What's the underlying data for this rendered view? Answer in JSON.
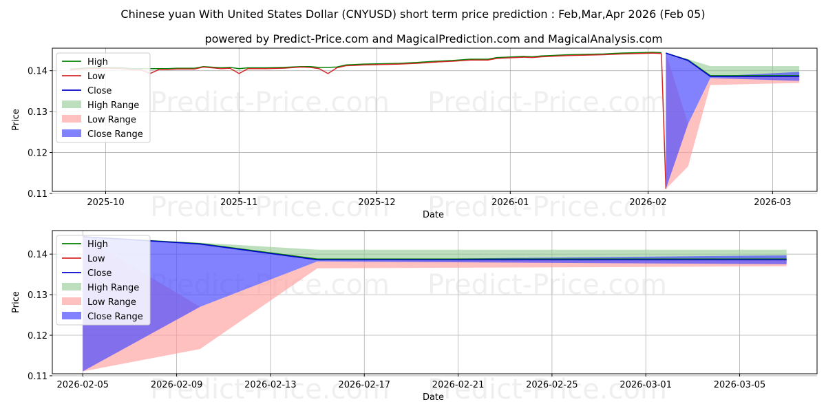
{
  "chart_data": {
    "title": "Chinese yuan With United States Dollar (CNYUSD) short term price prediction : Feb,Mar,Apr 2026 (Feb 05)",
    "subtitle": "powered by Predict-Price.com and MagicalPrediction.com and MagicalAnalysis.com",
    "watermark": "Predict-Price.com",
    "colors": {
      "high": "#008000",
      "low": "#d62728",
      "close": "#0000cc",
      "high_range": "#93c993",
      "low_range": "#ff9e9e",
      "close_range": "#4d4dff"
    },
    "legend": [
      "High",
      "Low",
      "Close",
      "High Range",
      "Low Range",
      "Close Range"
    ],
    "charts": [
      {
        "id": "top",
        "type": "line",
        "xlabel": "Date",
        "ylabel": "Price",
        "xlim_days": [
          -138,
          34
        ],
        "ylim": [
          0.1105,
          0.1455
        ],
        "xticks": [
          {
            "day": -126,
            "label": "2025-10"
          },
          {
            "day": -96,
            "label": "2025-11"
          },
          {
            "day": -65,
            "label": "2025-12"
          },
          {
            "day": -35,
            "label": "2026-01"
          },
          {
            "day": -4,
            "label": "2026-02"
          },
          {
            "day": 24,
            "label": "2026-03"
          }
        ],
        "yticks": [
          {
            "value": 0.11,
            "label": "0.11"
          },
          {
            "value": 0.12,
            "label": "0.12"
          },
          {
            "value": 0.13,
            "label": "0.13"
          },
          {
            "value": 0.14,
            "label": "0.14"
          }
        ],
        "history": {
          "days": [
            -134,
            -130,
            -126,
            -122,
            -120,
            -118,
            -116,
            -114,
            -112,
            -110,
            -106,
            -104,
            -100,
            -98,
            -96,
            -94,
            -92,
            -90,
            -86,
            -82,
            -80,
            -78,
            -76,
            -74,
            -72,
            -70,
            -68,
            -64,
            -60,
            -56,
            -52,
            -48,
            -44,
            -40,
            -38,
            -36,
            -32,
            -30,
            -28,
            -26,
            -22,
            -18,
            -14,
            -10,
            -6,
            -3,
            -1
          ],
          "low": [
            0.1402,
            0.1405,
            0.1406,
            0.1405,
            0.1402,
            0.1402,
            0.1393,
            0.1403,
            0.1403,
            0.1404,
            0.1404,
            0.1409,
            0.1405,
            0.1406,
            0.1393,
            0.1405,
            0.1405,
            0.1405,
            0.1406,
            0.1409,
            0.1408,
            0.1405,
            0.1393,
            0.1407,
            0.1412,
            0.1413,
            0.1414,
            0.1415,
            0.1416,
            0.1418,
            0.1421,
            0.1423,
            0.1426,
            0.1426,
            0.143,
            0.1431,
            0.1433,
            0.1432,
            0.1434,
            0.1435,
            0.1437,
            0.1438,
            0.1439,
            0.1441,
            0.1442,
            0.1443,
            0.1442
          ],
          "high": [
            0.1404,
            0.1407,
            0.1408,
            0.1407,
            0.1405,
            0.1405,
            0.1405,
            0.1405,
            0.1405,
            0.1406,
            0.1406,
            0.141,
            0.1407,
            0.1408,
            0.1405,
            0.1407,
            0.1407,
            0.1407,
            0.1408,
            0.141,
            0.141,
            0.1408,
            0.1408,
            0.1409,
            0.1414,
            0.1415,
            0.1416,
            0.1417,
            0.1418,
            0.142,
            0.1423,
            0.1425,
            0.1428,
            0.1428,
            0.1432,
            0.1433,
            0.1435,
            0.1434,
            0.1436,
            0.1437,
            0.1439,
            0.144,
            0.1441,
            0.1443,
            0.1444,
            0.1445,
            0.1444
          ]
        },
        "low_drop": {
          "days": [
            -1,
            0
          ],
          "values": [
            0.1442,
            0.1111
          ]
        }
      },
      {
        "id": "bottom",
        "type": "line",
        "xlabel": "Date",
        "ylabel": "Price",
        "xlim_days": [
          -1.3,
          31.3
        ],
        "ylim": [
          0.1105,
          0.1458
        ],
        "xticks": [
          {
            "day": 0,
            "label": "2026-02-05"
          },
          {
            "day": 4,
            "label": "2026-02-09"
          },
          {
            "day": 8,
            "label": "2026-02-13"
          },
          {
            "day": 12,
            "label": "2026-02-17"
          },
          {
            "day": 16,
            "label": "2026-02-21"
          },
          {
            "day": 20,
            "label": "2026-02-25"
          },
          {
            "day": 24,
            "label": "2026-03-01"
          },
          {
            "day": 28,
            "label": "2026-03-05"
          }
        ],
        "yticks": [
          {
            "value": 0.11,
            "label": "0.11"
          },
          {
            "value": 0.12,
            "label": "0.12"
          },
          {
            "value": 0.13,
            "label": "0.13"
          },
          {
            "value": 0.14,
            "label": "0.14"
          }
        ]
      }
    ],
    "forecast": {
      "days": [
        0,
        5,
        10,
        30
      ],
      "high": [
        0.1443,
        0.1426,
        0.1388,
        0.1388
      ],
      "low": [
        0.1111,
        0.1166,
        0.1365,
        0.137
      ],
      "close": [
        0.1443,
        0.1425,
        0.1386,
        0.1386
      ],
      "high_range": {
        "upper": [
          0.1443,
          0.1428,
          0.1411,
          0.1411
        ],
        "lower": [
          0.1443,
          0.1422,
          0.1384,
          0.1384
        ]
      },
      "low_range": {
        "upper": [
          0.1443,
          0.127,
          0.1382,
          0.139
        ],
        "lower": [
          0.1111,
          0.1166,
          0.1365,
          0.137
        ]
      },
      "close_range": {
        "upper": [
          0.1443,
          0.1425,
          0.1386,
          0.1397
        ],
        "lower": [
          0.1111,
          0.127,
          0.1382,
          0.1375
        ]
      }
    }
  }
}
